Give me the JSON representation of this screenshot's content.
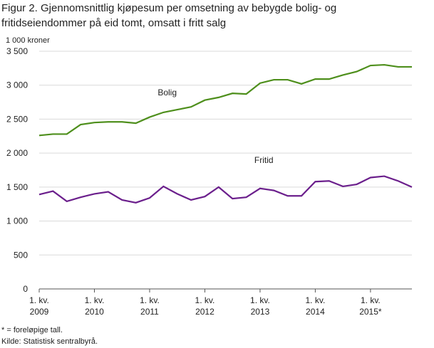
{
  "chart_data": {
    "type": "line",
    "title": [
      "Figur 2. Gjennomsnittlig kjøpesum per omsetning av bebygde bolig- og",
      "fritidseiendommer på eid tomt, omsatt i fritt salg"
    ],
    "y_label": "1 000 kroner",
    "categories": [
      "1. kv.\n2009",
      null,
      null,
      null,
      "1. kv.\n2010",
      null,
      null,
      null,
      "1. kv.\n2011",
      null,
      null,
      null,
      "1. kv.\n2012",
      null,
      null,
      null,
      "1. kv.\n2013",
      null,
      null,
      null,
      "1. kv.\n2014",
      null,
      null,
      null,
      "1. kv.\n2015*",
      null,
      null,
      null
    ],
    "series": [
      {
        "name": "Bolig",
        "color": "#4e8f1c",
        "values": [
          2260,
          2280,
          2280,
          2420,
          2450,
          2460,
          2460,
          2440,
          2530,
          2600,
          2640,
          2680,
          2780,
          2820,
          2880,
          2870,
          3030,
          3080,
          3080,
          3020,
          3090,
          3090,
          3150,
          3200,
          3290,
          3300,
          3270,
          3270
        ]
      },
      {
        "name": "Fritid",
        "color": "#6b1f8c",
        "values": [
          1390,
          1440,
          1290,
          1350,
          1400,
          1430,
          1310,
          1270,
          1340,
          1510,
          1400,
          1310,
          1360,
          1500,
          1330,
          1350,
          1480,
          1450,
          1370,
          1370,
          1580,
          1590,
          1510,
          1540,
          1640,
          1660,
          1590,
          1500
        ]
      }
    ],
    "ylim": [
      0,
      3500
    ],
    "yticks": [
      0,
      500,
      {
        "value": 1000,
        "label": "1 000"
      },
      {
        "value": 1500,
        "label": "1 500"
      },
      {
        "value": 2000,
        "label": "2 000"
      },
      {
        "value": 2500,
        "label": "2 500"
      },
      {
        "value": 3000,
        "label": "3 000"
      },
      {
        "value": 3500,
        "label": "3 500"
      }
    ],
    "grid": true,
    "footnotes": [
      "* = foreløpige tall.",
      "Kilde: Statistisk sentralbyrå."
    ]
  }
}
